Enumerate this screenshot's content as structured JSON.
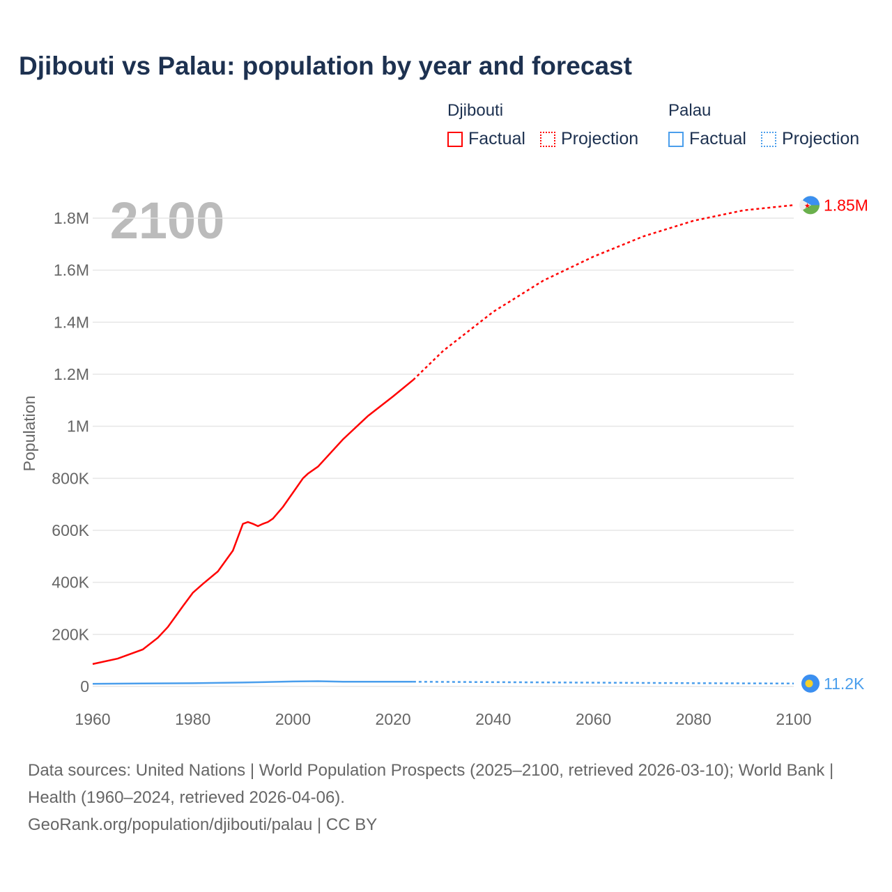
{
  "title": "Djibouti vs Palau: population by year and forecast",
  "legend": {
    "groups": [
      {
        "name": "Djibouti",
        "factual": "Factual",
        "projection": "Projection",
        "color": "#ff0000"
      },
      {
        "name": "Palau",
        "factual": "Factual",
        "projection": "Projection",
        "color": "#4a9eec"
      }
    ]
  },
  "year_label": "2100",
  "sources": "Data sources: United Nations | World Population Prospects (2025–2100, retrieved 2026-03-10); World Bank | Health (1960–2024, retrieved 2026-04-06).",
  "credit": "GeoRank.org/population/djibouti/palau | CC BY",
  "chart_data": {
    "type": "line",
    "title": "Djibouti vs Palau: population by year and forecast",
    "xlabel": "",
    "ylabel": "Population",
    "xlim": [
      1960,
      2100
    ],
    "ylim": [
      0,
      1800000
    ],
    "xticks": [
      "1960",
      "1980",
      "2000",
      "2020",
      "2040",
      "2060",
      "2080",
      "2100"
    ],
    "yticks": [
      {
        "v": 0,
        "l": "0"
      },
      {
        "v": 200000,
        "l": "200K"
      },
      {
        "v": 400000,
        "l": "400K"
      },
      {
        "v": 600000,
        "l": "600K"
      },
      {
        "v": 800000,
        "l": "800K"
      },
      {
        "v": 1000000,
        "l": "1M"
      },
      {
        "v": 1200000,
        "l": "1.2M"
      },
      {
        "v": 1400000,
        "l": "1.4M"
      },
      {
        "v": 1600000,
        "l": "1.6M"
      },
      {
        "v": 1800000,
        "l": "1.8M"
      }
    ],
    "grid": true,
    "legend_position": "top-right",
    "series": [
      {
        "name": "Djibouti",
        "color": "#ff0000",
        "end_label": "1.85M",
        "factual": [
          [
            1960,
            86000
          ],
          [
            1965,
            107000
          ],
          [
            1970,
            142000
          ],
          [
            1973,
            187000
          ],
          [
            1975,
            228000
          ],
          [
            1978,
            308000
          ],
          [
            1980,
            360000
          ],
          [
            1982,
            394000
          ],
          [
            1985,
            442000
          ],
          [
            1988,
            522000
          ],
          [
            1990,
            625000
          ],
          [
            1991,
            632000
          ],
          [
            1992,
            625000
          ],
          [
            1993,
            616000
          ],
          [
            1994,
            625000
          ],
          [
            1995,
            632000
          ],
          [
            1996,
            645000
          ],
          [
            1998,
            690000
          ],
          [
            2000,
            745000
          ],
          [
            2002,
            800000
          ],
          [
            2003,
            818000
          ],
          [
            2005,
            845000
          ],
          [
            2010,
            950000
          ],
          [
            2015,
            1040000
          ],
          [
            2020,
            1115000
          ],
          [
            2024,
            1178000
          ]
        ],
        "projection": [
          [
            2024,
            1178000
          ],
          [
            2030,
            1290000
          ],
          [
            2040,
            1440000
          ],
          [
            2050,
            1560000
          ],
          [
            2060,
            1652000
          ],
          [
            2070,
            1730000
          ],
          [
            2080,
            1790000
          ],
          [
            2090,
            1830000
          ],
          [
            2100,
            1850000
          ]
        ]
      },
      {
        "name": "Palau",
        "color": "#4a9eec",
        "end_label": "11.2K",
        "factual": [
          [
            1960,
            10000
          ],
          [
            1970,
            11500
          ],
          [
            1980,
            12300
          ],
          [
            1990,
            15000
          ],
          [
            2000,
            19000
          ],
          [
            2005,
            20000
          ],
          [
            2010,
            18000
          ],
          [
            2024,
            18000
          ]
        ],
        "projection": [
          [
            2024,
            18000
          ],
          [
            2040,
            16500
          ],
          [
            2060,
            14500
          ],
          [
            2080,
            12500
          ],
          [
            2100,
            11200
          ]
        ]
      }
    ]
  }
}
